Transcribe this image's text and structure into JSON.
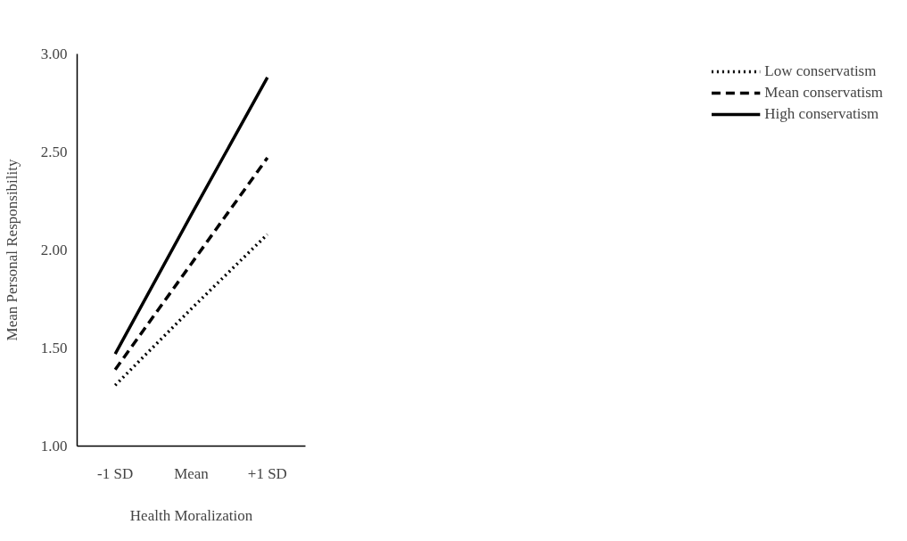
{
  "chart_data": {
    "type": "line",
    "xlabel": "Health Moralization",
    "ylabel": "Mean Personal Responsibility",
    "categories": [
      "-1 SD",
      "Mean",
      "+1 SD"
    ],
    "ylim": [
      1,
      3
    ],
    "yticks": [
      {
        "value": 1,
        "label": "1.00"
      },
      {
        "value": 1.5,
        "label": "1.50"
      },
      {
        "value": 2,
        "label": "2.00"
      },
      {
        "value": 2.5,
        "label": "2.50"
      },
      {
        "value": 3,
        "label": "3.00"
      }
    ],
    "grid": false,
    "legend": "right",
    "marker": "none",
    "series": [
      {
        "name": "Low conservatism",
        "color": "#000000",
        "line_style": "dotted",
        "values": [
          1.31,
          1.7,
          2.08
        ]
      },
      {
        "name": "Mean conservatism",
        "color": "#000000",
        "line_style": "dashed",
        "values": [
          1.39,
          1.93,
          2.47
        ]
      },
      {
        "name": "High conservatism",
        "color": "#000000",
        "line_style": "solid",
        "values": [
          1.47,
          2.18,
          2.88
        ]
      }
    ]
  }
}
